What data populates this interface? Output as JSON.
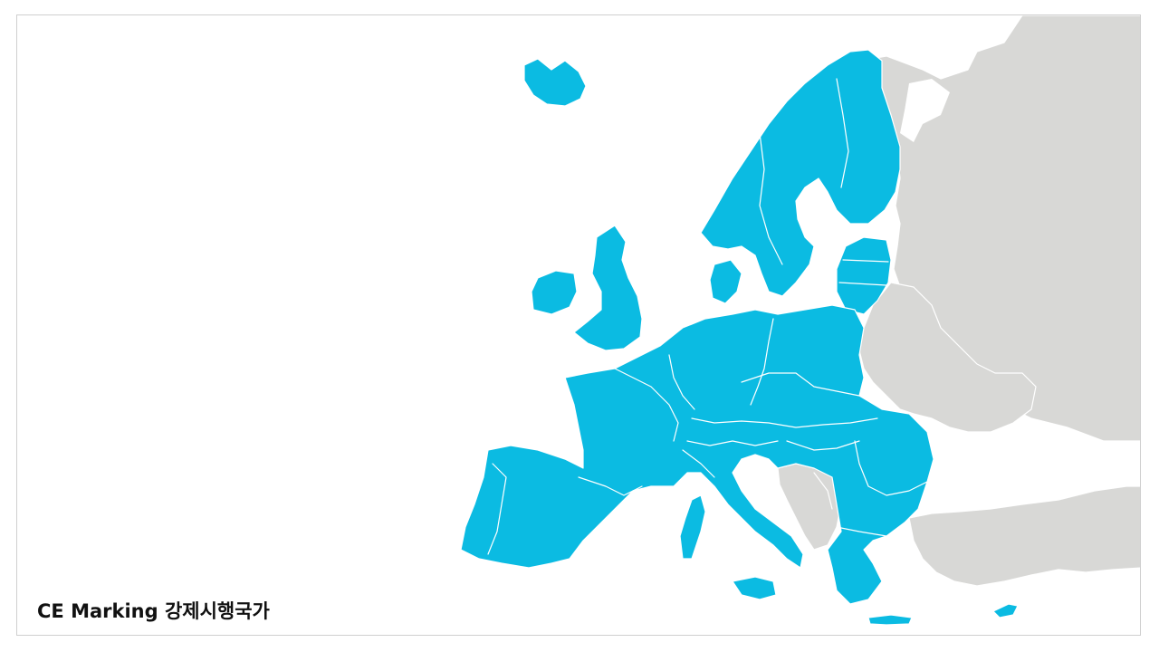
{
  "caption": "CE Marking 강제시행국가",
  "colors": {
    "mandatory": "#0bbbe2",
    "other": "#d8d8d6",
    "border": "#ffffff",
    "background": "#ffffff"
  },
  "legend": {
    "highlighted_meaning": "CE Marking 강제시행국가"
  }
}
